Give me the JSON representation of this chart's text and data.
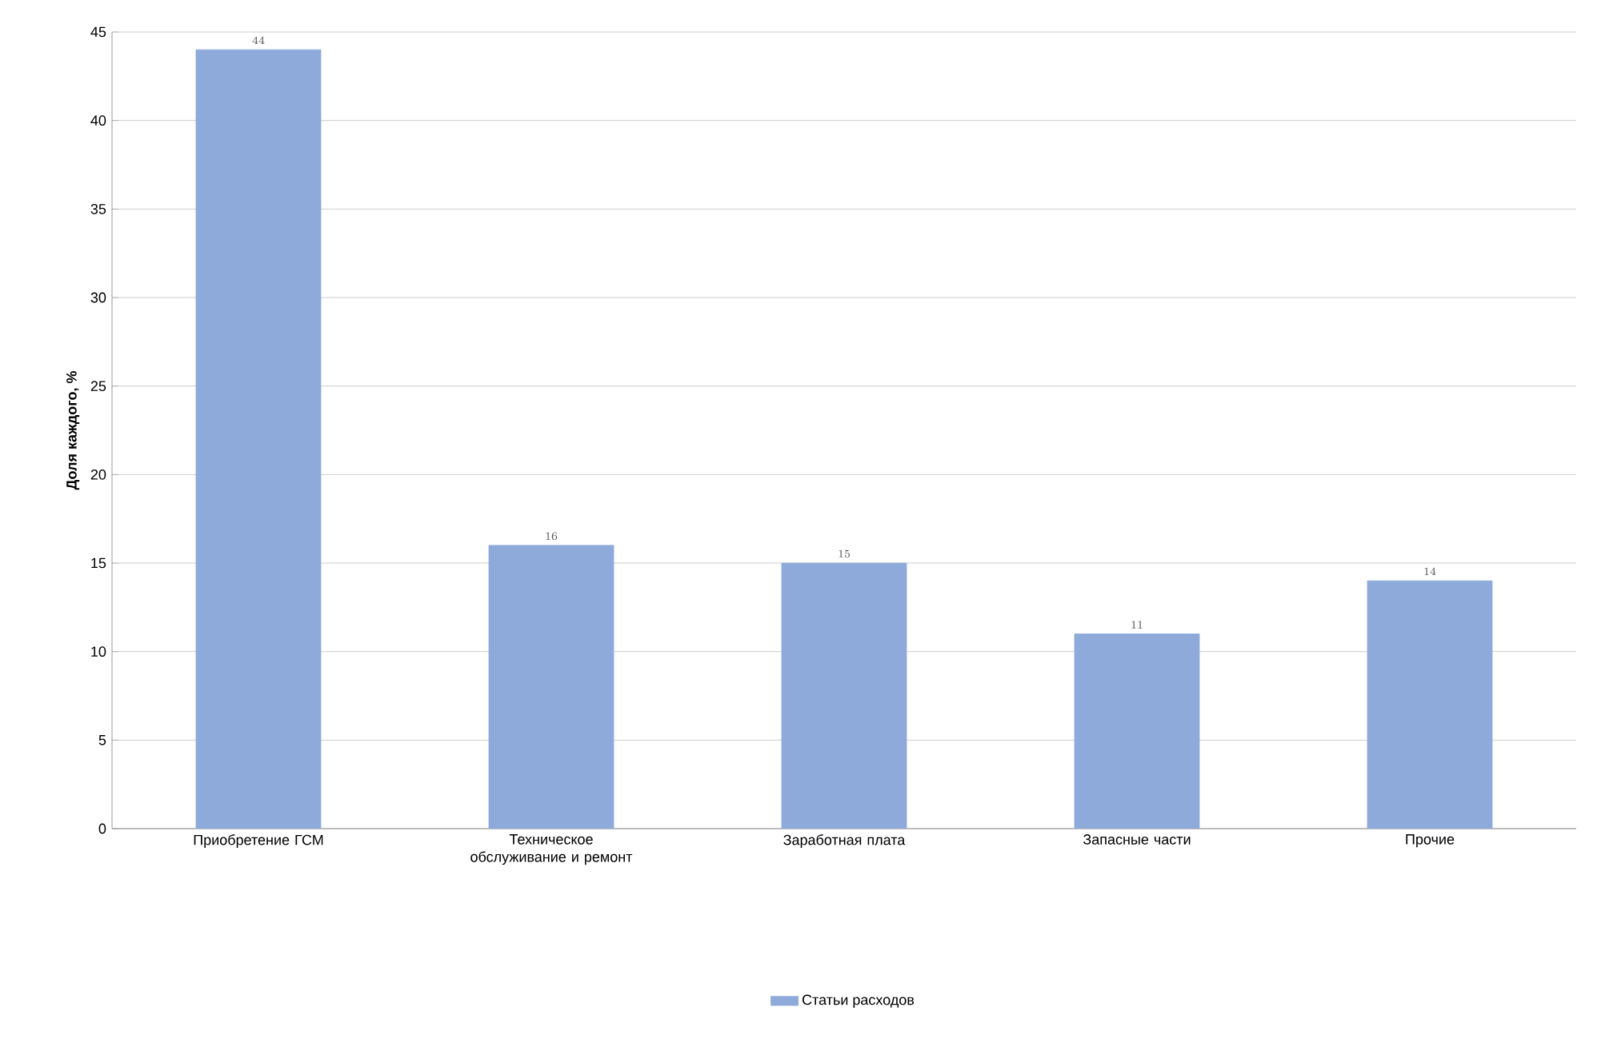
{
  "chart_data": {
    "type": "bar",
    "ylabel": "Доля каждого, %",
    "categories": [
      "Приобретение ГСМ",
      "Техническое обслуживание и ремонт",
      "Заработная плата",
      "Запасные части",
      "Прочие"
    ],
    "series": [
      {
        "name": "Статьи расходов",
        "color": "#8eaadb",
        "values": [
          44,
          16,
          15,
          11,
          14
        ]
      }
    ],
    "ylim": [
      0,
      45
    ],
    "yticks": [
      0,
      5,
      10,
      15,
      20,
      25,
      30,
      35,
      40,
      45
    ],
    "grid": "y",
    "legend": "bottom",
    "data_labels": true
  }
}
